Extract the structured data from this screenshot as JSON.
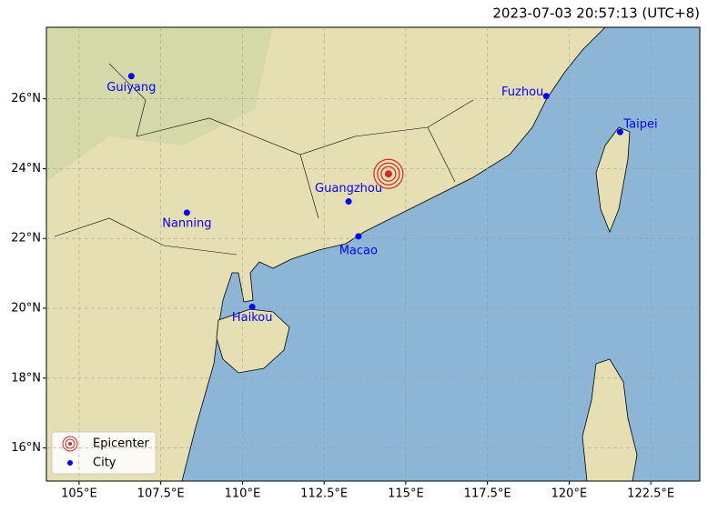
{
  "title": "2023-07-03 20:57:13 (UTC+8)",
  "xlim": [
    104,
    124
  ],
  "ylim": [
    15.05,
    28.05
  ],
  "xticks": [
    {
      "value": 105,
      "label": "105°E"
    },
    {
      "value": 107.5,
      "label": "107.5°E"
    },
    {
      "value": 110,
      "label": "110°E"
    },
    {
      "value": 112.5,
      "label": "112.5°E"
    },
    {
      "value": 115,
      "label": "115°E"
    },
    {
      "value": 117.5,
      "label": "117.5°E"
    },
    {
      "value": 120,
      "label": "120°E"
    },
    {
      "value": 122.5,
      "label": "122.5°E"
    }
  ],
  "yticks": [
    {
      "value": 16,
      "label": "16°N"
    },
    {
      "value": 18,
      "label": "18°N"
    },
    {
      "value": 20,
      "label": "20°N"
    },
    {
      "value": 22,
      "label": "22°N"
    },
    {
      "value": 24,
      "label": "24°N"
    },
    {
      "value": 26,
      "label": "26°N"
    }
  ],
  "epicenter": {
    "lon": 114.47,
    "lat": 23.85,
    "color": "#d62728"
  },
  "cities": [
    {
      "name": "Guiyang",
      "lon": 106.6,
      "lat": 26.65
    },
    {
      "name": "Nanning",
      "lon": 108.3,
      "lat": 22.74
    },
    {
      "name": "Guangzhou",
      "lon": 113.25,
      "lat": 23.06
    },
    {
      "name": "Macao",
      "lon": 113.55,
      "lat": 22.06
    },
    {
      "name": "Haikou",
      "lon": 110.3,
      "lat": 20.04
    },
    {
      "name": "Fuzhou",
      "lon": 119.3,
      "lat": 26.08
    },
    {
      "name": "Taipei",
      "lon": 121.56,
      "lat": 25.05
    }
  ],
  "city_color": "#0000ff",
  "legend": [
    "Epicenter",
    "City"
  ]
}
